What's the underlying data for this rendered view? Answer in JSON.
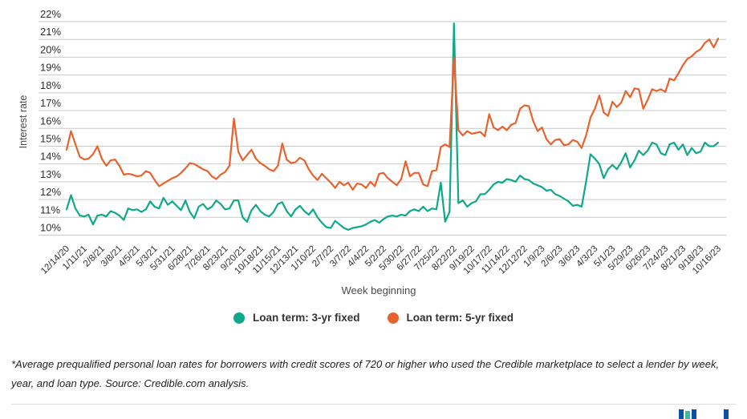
{
  "chart_data": {
    "type": "line",
    "title": "",
    "xlabel": "Week beginning",
    "ylabel": "Interest rate",
    "ylim": [
      10,
      22
    ],
    "grid": true,
    "legend_position": "bottom",
    "y_tick_labels": [
      "22%",
      "21%",
      "20%",
      "19%",
      "18%",
      "17%",
      "16%",
      "15%",
      "14%",
      "13%",
      "12%",
      "11%",
      "10%"
    ],
    "x_tick_labels": [
      "12/14/20",
      "1/11/21",
      "2/8/21",
      "3/8/21",
      "4/5/21",
      "5/3/21",
      "5/31/21",
      "6/28/21",
      "7/26/21",
      "8/23/21",
      "9/20/21",
      "10/18/21",
      "11/15/21",
      "12/13/21",
      "1/10/22",
      "2/7/22",
      "3/7/22",
      "4/4/22",
      "5/2/22",
      "5/30/22",
      "6/27/22",
      "7/25/22",
      "8/22/22",
      "9/19/22",
      "10/17/22",
      "11/14/22",
      "12/12/22",
      "1/9/23",
      "2/6/23",
      "3/6/23",
      "4/3/23",
      "5/1/23",
      "5/29/23",
      "6/26/23",
      "7/24/23",
      "8/21/23",
      "9/18/23",
      "10/16/23"
    ],
    "weeks_per_tick": 4,
    "series": [
      {
        "name": "Loan term: 3-yr fixed",
        "color": "#0FA98A",
        "values": [
          11.45,
          12.25,
          11.5,
          11.1,
          11.05,
          11.15,
          10.6,
          11.1,
          11.15,
          11.05,
          11.35,
          11.25,
          11.1,
          10.85,
          11.5,
          11.4,
          11.45,
          11.3,
          11.45,
          11.9,
          11.6,
          11.5,
          12.1,
          11.7,
          11.9,
          11.65,
          11.4,
          11.95,
          11.3,
          10.95,
          11.6,
          11.75,
          11.45,
          11.6,
          11.95,
          11.75,
          11.45,
          11.5,
          11.95,
          11.95,
          11.0,
          10.75,
          11.4,
          11.7,
          11.35,
          11.15,
          11.05,
          11.3,
          11.75,
          11.85,
          11.35,
          11.05,
          11.45,
          11.65,
          11.35,
          11.15,
          11.45,
          11.0,
          10.7,
          10.45,
          10.4,
          10.8,
          10.6,
          10.4,
          10.3,
          10.4,
          10.45,
          10.5,
          10.6,
          10.75,
          10.85,
          10.7,
          10.9,
          11.05,
          11.1,
          11.05,
          11.15,
          11.1,
          11.35,
          11.45,
          11.35,
          11.6,
          11.35,
          11.5,
          11.45,
          12.95,
          10.75,
          11.3,
          21.9,
          11.8,
          11.95,
          11.6,
          11.8,
          11.9,
          12.3,
          12.3,
          12.55,
          12.85,
          13.0,
          12.95,
          13.15,
          13.1,
          13.0,
          13.35,
          13.15,
          13.1,
          12.9,
          12.8,
          12.7,
          12.5,
          12.55,
          12.3,
          12.2,
          12.05,
          11.9,
          11.65,
          11.7,
          11.6,
          13.0,
          14.55,
          14.3,
          14.0,
          13.2,
          13.7,
          13.95,
          13.7,
          14.1,
          14.6,
          13.8,
          14.2,
          14.75,
          14.5,
          14.75,
          15.2,
          15.1,
          14.6,
          14.5,
          15.1,
          15.2,
          14.8,
          15.1,
          14.5,
          14.9,
          14.6,
          14.7,
          15.2,
          15.0,
          15.0,
          15.2
        ]
      },
      {
        "name": "Loan term: 5-yr fixed",
        "color": "#E8622D",
        "values": [
          14.8,
          15.85,
          15.1,
          14.4,
          14.25,
          14.3,
          14.55,
          15.0,
          14.3,
          13.9,
          14.2,
          14.25,
          13.9,
          13.4,
          13.45,
          13.4,
          13.3,
          13.35,
          13.6,
          13.5,
          13.1,
          12.75,
          12.9,
          13.05,
          13.2,
          13.3,
          13.5,
          13.75,
          14.05,
          14.0,
          13.85,
          13.7,
          13.6,
          13.3,
          13.15,
          13.4,
          13.55,
          13.9,
          16.55,
          14.7,
          14.2,
          14.5,
          14.8,
          14.3,
          14.05,
          13.9,
          13.7,
          13.6,
          13.9,
          15.15,
          14.25,
          14.05,
          14.1,
          14.35,
          14.2,
          13.7,
          13.35,
          13.1,
          13.45,
          13.2,
          12.95,
          12.65,
          13.0,
          12.8,
          12.95,
          12.55,
          12.9,
          12.85,
          12.65,
          13.0,
          12.75,
          13.45,
          13.5,
          13.2,
          13.0,
          12.8,
          13.15,
          14.15,
          13.3,
          13.5,
          13.5,
          12.85,
          12.75,
          13.6,
          13.65,
          14.95,
          15.1,
          14.95,
          19.95,
          15.9,
          15.6,
          15.85,
          15.7,
          15.75,
          15.8,
          15.55,
          16.8,
          16.05,
          15.9,
          16.1,
          15.9,
          16.2,
          16.3,
          17.1,
          17.3,
          17.25,
          16.4,
          15.85,
          16.05,
          15.4,
          15.1,
          15.35,
          15.4,
          15.05,
          15.1,
          15.35,
          15.25,
          14.9,
          15.6,
          16.6,
          17.1,
          17.85,
          16.9,
          16.7,
          17.5,
          17.2,
          17.45,
          18.1,
          17.75,
          18.25,
          18.2,
          17.1,
          17.6,
          18.2,
          18.1,
          18.2,
          18.05,
          18.8,
          18.7,
          19.1,
          19.55,
          19.9,
          20.05,
          20.3,
          20.45,
          20.8,
          21.0,
          20.55,
          21.05
        ]
      }
    ]
  },
  "footnote": "*Average prequalified personal loan rates for borrowers with credit scores of 720 or higher who used the Credible marketplace to select a lender by week, year, and loan type. Source: Credible.com analysis.",
  "colors": {
    "gridline": "#c9c9c9",
    "axis_text": "#2e2e2e",
    "axis_title": "#4a4a4a",
    "logo_blue": "#0B51A8",
    "logo_teal": "#3CB9A0"
  }
}
